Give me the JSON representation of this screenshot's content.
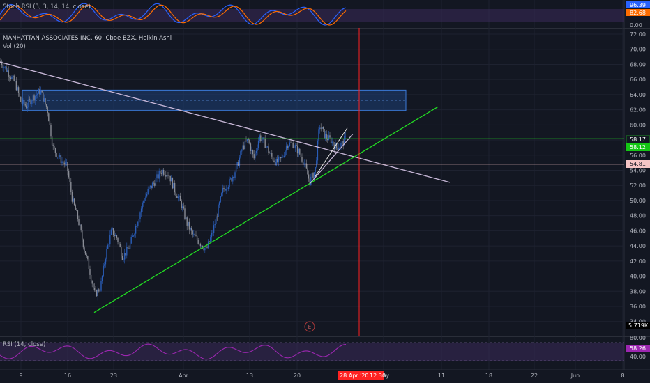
{
  "colors": {
    "background": "#131722",
    "grid": "#1e2230",
    "axis_text": "#b2b5be",
    "candle_up": "#2a5db8",
    "candle_down": "#8a8d96",
    "stoch_k": "#2962ff",
    "stoch_d": "#ff6d00",
    "rsi": "#9c27b0",
    "band": "#3a2a5a",
    "trend_green": "#22dd22",
    "trend_gray": "#c8b8d8",
    "zone_fill": "#1e4a8a",
    "zone_border": "#3b7ad9",
    "red_line": "#ff2222",
    "price_badge_green": "#14c714",
    "price_badge_pink": "#f5c5c5",
    "price_badge_blue": "#2962ff",
    "price_badge_orange": "#ff6d00",
    "price_badge_purple": "#9c27b0",
    "price_badge_black": "#000000",
    "date_badge": "#ff2222"
  },
  "stoch": {
    "title": "Stoch RSI (3, 3, 14, 14, close)",
    "k_value": "96.39",
    "d_value": "82.68",
    "zero": "0.00"
  },
  "main": {
    "title": "MANHATTAN ASSOCIATES INC, 60, Cboe BZX, Heikin Ashi",
    "vol_label": "Vol (20)",
    "price_badges": {
      "p1": "58.17",
      "p2": "58.12",
      "p3": "54.81",
      "vol": "5.719K"
    },
    "event_marker": "E"
  },
  "rsi": {
    "title": "RSI (14, close)",
    "value": "58.26",
    "level_80": "80.00",
    "level_40": "40.00"
  },
  "time_axis": {
    "labels": [
      "9",
      "16",
      "23",
      "Apr",
      "13",
      "20",
      "May",
      "11",
      "18",
      "22",
      "Jun",
      "8"
    ],
    "cursor_date": "28 Apr '20",
    "cursor_time": "12:30"
  },
  "chart_data": {
    "type": "candlestick",
    "title": "MANHATTAN ASSOCIATES INC, 60, Cboe BZX, Heikin Ashi",
    "y_ticks": [
      72,
      70,
      68,
      66,
      64,
      62,
      60,
      58,
      56,
      54,
      52,
      50,
      48,
      46,
      44,
      42,
      40,
      38,
      36,
      34
    ],
    "ylim": [
      34,
      73
    ],
    "close_path": [
      [
        0,
        68.5
      ],
      [
        10,
        67.2
      ],
      [
        22,
        65.5
      ],
      [
        30,
        63.0
      ],
      [
        38,
        62.5
      ],
      [
        46,
        63.5
      ],
      [
        58,
        64.5
      ],
      [
        68,
        62.0
      ],
      [
        76,
        57.0
      ],
      [
        86,
        55.5
      ],
      [
        96,
        54.5
      ],
      [
        104,
        50.0
      ],
      [
        112,
        47.5
      ],
      [
        120,
        44.0
      ],
      [
        128,
        41.0
      ],
      [
        136,
        37.5
      ],
      [
        144,
        38.5
      ],
      [
        152,
        43.0
      ],
      [
        160,
        46.0
      ],
      [
        168,
        45.0
      ],
      [
        176,
        42.5
      ],
      [
        186,
        44.0
      ],
      [
        196,
        47.0
      ],
      [
        206,
        50.0
      ],
      [
        214,
        51.5
      ],
      [
        222,
        52.5
      ],
      [
        232,
        54.0
      ],
      [
        242,
        53.5
      ],
      [
        250,
        51.5
      ],
      [
        260,
        49.5
      ],
      [
        268,
        47.0
      ],
      [
        276,
        45.5
      ],
      [
        286,
        44.5
      ],
      [
        296,
        43.5
      ],
      [
        304,
        45.5
      ],
      [
        312,
        48.5
      ],
      [
        320,
        51.5
      ],
      [
        330,
        52.5
      ],
      [
        340,
        54.5
      ],
      [
        348,
        57.0
      ],
      [
        356,
        58.0
      ],
      [
        364,
        55.5
      ],
      [
        372,
        58.5
      ],
      [
        380,
        57.5
      ],
      [
        388,
        56.0
      ],
      [
        396,
        55.0
      ],
      [
        404,
        55.5
      ],
      [
        412,
        57.5
      ],
      [
        420,
        57.5
      ],
      [
        428,
        56.5
      ],
      [
        436,
        55.0
      ],
      [
        444,
        52.5
      ],
      [
        452,
        54.0
      ],
      [
        458,
        60.0
      ],
      [
        466,
        58.5
      ],
      [
        474,
        58.0
      ],
      [
        482,
        57.0
      ],
      [
        490,
        57.5
      ],
      [
        496,
        58.2
      ]
    ],
    "trendlines": [
      {
        "from": [
          0,
          68.3
        ],
        "to": [
          645,
          52.4
        ],
        "color": "trend_gray"
      },
      {
        "from": [
          135,
          35.2
        ],
        "to": [
          628,
          62.4
        ],
        "color": "trend_green"
      },
      {
        "from": [
          444,
          52.2
        ],
        "to": [
          506,
          58.8
        ],
        "color": "trend_gray"
      }
    ],
    "horizontal_lines": [
      {
        "price": 58.17,
        "color": "trend_green"
      },
      {
        "price": 54.81,
        "color": "price_badge_pink"
      }
    ],
    "zone": {
      "x_start": 32,
      "x_end": 582,
      "price_top": 64.6,
      "price_bottom": 61.9,
      "mid": 63.25
    },
    "cursor_x": 515,
    "stoch_ticks": [
      "0.00",
      "82.68",
      "96.39"
    ],
    "rsi_ticks": [
      "40.00",
      "58.26",
      "80.00"
    ]
  }
}
